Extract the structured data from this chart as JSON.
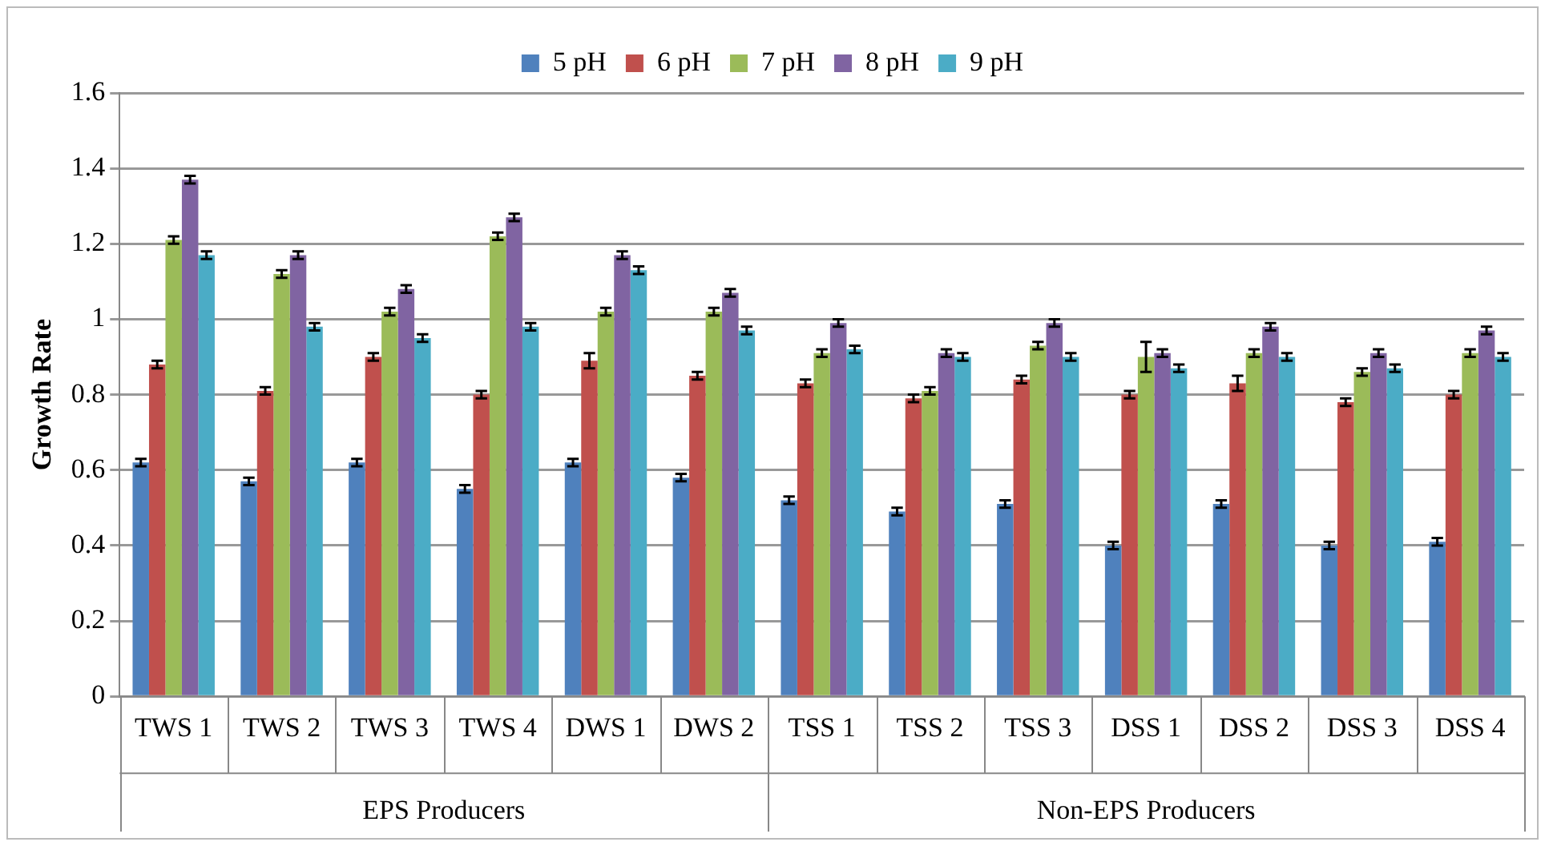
{
  "chart_data": {
    "type": "bar",
    "ylabel": "Growth Rate",
    "categories": [
      "TWS 1",
      "TWS 2",
      "TWS 3",
      "TWS 4",
      "DWS 1",
      "DWS 2",
      "TSS 1",
      "TSS 2",
      "TSS 3",
      "DSS 1",
      "DSS 2",
      "DSS 3",
      "DSS 4"
    ],
    "series": [
      {
        "name": "5 pH",
        "color": "#4f81bd",
        "values": [
          0.62,
          0.57,
          0.62,
          0.55,
          0.62,
          0.58,
          0.52,
          0.49,
          0.51,
          0.4,
          0.51,
          0.4,
          0.41
        ],
        "errors": [
          0.01,
          0.01,
          0.01,
          0.01,
          0.01,
          0.01,
          0.01,
          0.01,
          0.01,
          0.01,
          0.01,
          0.01,
          0.01
        ]
      },
      {
        "name": "6 pH",
        "color": "#c0504d",
        "values": [
          0.88,
          0.81,
          0.9,
          0.8,
          0.89,
          0.85,
          0.83,
          0.79,
          0.84,
          0.8,
          0.83,
          0.78,
          0.8
        ],
        "errors": [
          0.01,
          0.01,
          0.01,
          0.01,
          0.02,
          0.01,
          0.01,
          0.01,
          0.01,
          0.01,
          0.02,
          0.01,
          0.01
        ]
      },
      {
        "name": "7 pH",
        "color": "#9bbb59",
        "values": [
          1.21,
          1.12,
          1.02,
          1.22,
          1.02,
          1.02,
          0.91,
          0.81,
          0.93,
          0.9,
          0.91,
          0.86,
          0.91
        ],
        "errors": [
          0.01,
          0.01,
          0.01,
          0.01,
          0.01,
          0.01,
          0.01,
          0.01,
          0.01,
          0.04,
          0.01,
          0.01,
          0.01
        ]
      },
      {
        "name": "8 pH",
        "color": "#8064a2",
        "values": [
          1.37,
          1.17,
          1.08,
          1.27,
          1.17,
          1.07,
          0.99,
          0.91,
          0.99,
          0.91,
          0.98,
          0.91,
          0.97
        ],
        "errors": [
          0.01,
          0.01,
          0.01,
          0.01,
          0.01,
          0.01,
          0.01,
          0.01,
          0.01,
          0.01,
          0.01,
          0.01,
          0.01
        ]
      },
      {
        "name": "9 pH",
        "color": "#4bacc6",
        "values": [
          1.17,
          0.98,
          0.95,
          0.98,
          1.13,
          0.97,
          0.92,
          0.9,
          0.9,
          0.87,
          0.9,
          0.87,
          0.9
        ],
        "errors": [
          0.01,
          0.01,
          0.01,
          0.01,
          0.01,
          0.01,
          0.01,
          0.01,
          0.01,
          0.01,
          0.01,
          0.01,
          0.01
        ]
      }
    ],
    "ylim": [
      0,
      1.6
    ],
    "yticks": [
      0,
      0.2,
      0.4,
      0.6,
      0.8,
      1,
      1.2,
      1.4,
      1.6
    ],
    "grid": "y",
    "legend": "top",
    "annotations": [
      "EPS Producers",
      "Non-EPS Producers"
    ]
  }
}
